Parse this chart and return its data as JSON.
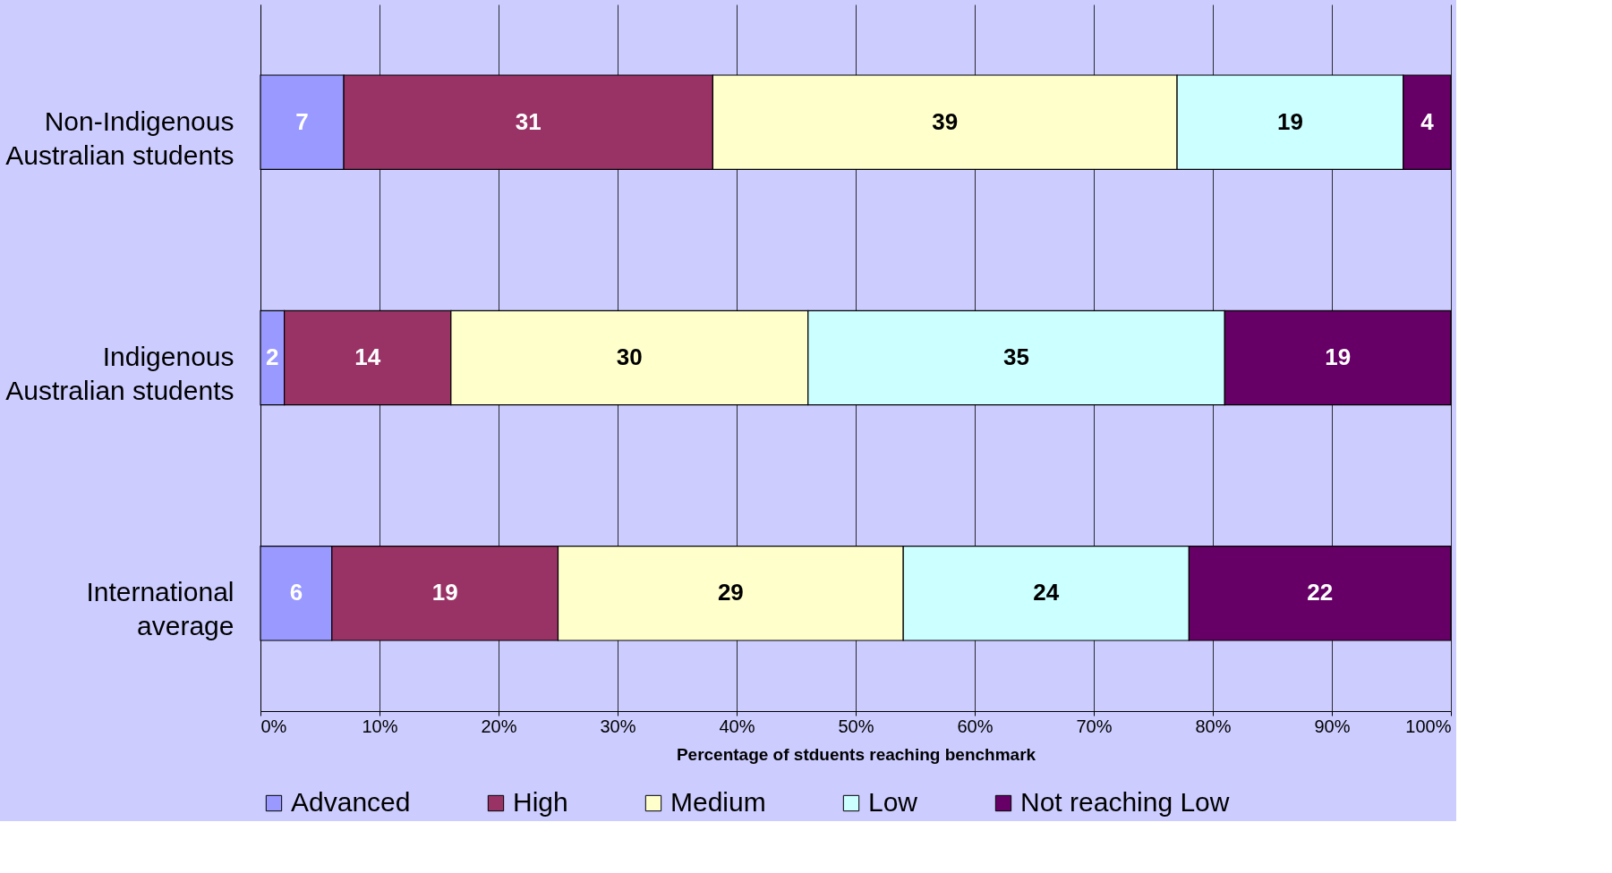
{
  "chart_data": {
    "type": "bar",
    "orientation": "horizontal",
    "stacked": true,
    "categories": [
      "Non-Indigenous Australian students",
      "Indigenous Australian students",
      "International average"
    ],
    "series": [
      {
        "name": "Advanced",
        "color": "#9999ff",
        "values": [
          7,
          2,
          6
        ]
      },
      {
        "name": "High",
        "color": "#993366",
        "values": [
          31,
          14,
          19
        ]
      },
      {
        "name": "Medium",
        "color": "#ffffcc",
        "values": [
          39,
          30,
          29
        ]
      },
      {
        "name": "Low",
        "color": "#ccffff",
        "values": [
          19,
          35,
          24
        ]
      },
      {
        "name": "Not reaching Low",
        "color": "#660066",
        "values": [
          4,
          19,
          22
        ]
      }
    ],
    "xlabel": "Percentage of stduents reaching benchmark",
    "xlim": [
      0,
      100
    ],
    "xticks": [
      {
        "value": 0,
        "label": "0%"
      },
      {
        "value": 10,
        "label": "10%"
      },
      {
        "value": 20,
        "label": "20%"
      },
      {
        "value": 30,
        "label": "30%"
      },
      {
        "value": 40,
        "label": "40%"
      },
      {
        "value": 50,
        "label": "50%"
      },
      {
        "value": 60,
        "label": "60%"
      },
      {
        "value": 70,
        "label": "70%"
      },
      {
        "value": 80,
        "label": "80%"
      },
      {
        "value": 90,
        "label": "90%"
      },
      {
        "value": 100,
        "label": "100%"
      }
    ],
    "grid": "x",
    "legend": "bottom",
    "data_labels": true
  }
}
